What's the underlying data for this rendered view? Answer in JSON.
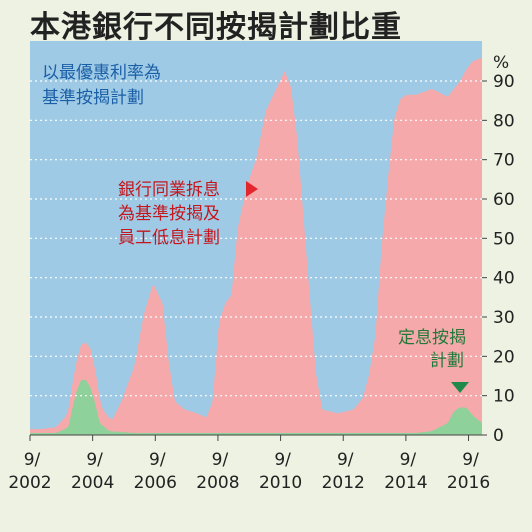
{
  "title": "本港銀行不同按揭計劃比重",
  "chart_data": {
    "type": "area",
    "title": "本港銀行不同按揭計劃比重",
    "ylabel": "%",
    "ylim": [
      0,
      100
    ],
    "yticks": [
      0,
      10,
      20,
      30,
      40,
      50,
      60,
      70,
      80,
      90
    ],
    "xlim": [
      2002.67,
      2017.1
    ],
    "xticks": [
      {
        "x": 2002.67,
        "month": "9/",
        "year": "2002"
      },
      {
        "x": 2004.67,
        "month": "9/",
        "year": "2004"
      },
      {
        "x": 2006.67,
        "month": "9/",
        "year": "2006"
      },
      {
        "x": 2008.67,
        "month": "9/",
        "year": "2008"
      },
      {
        "x": 2010.67,
        "month": "9/",
        "year": "2010"
      },
      {
        "x": 2012.67,
        "month": "9/",
        "year": "2012"
      },
      {
        "x": 2014.67,
        "month": "9/",
        "year": "2014"
      },
      {
        "x": 2016.67,
        "month": "9/",
        "year": "2016"
      }
    ],
    "grid": true,
    "stacking": "stacked-to-100",
    "series": [
      {
        "name": "定息按揭計劃",
        "color": "#8fd19a",
        "x": [
          2002.67,
          2003.5,
          2003.9,
          2004.0,
          2004.15,
          2004.3,
          2004.45,
          2004.6,
          2004.75,
          2004.9,
          2005.2,
          2006.0,
          2007.0,
          2008.5,
          2009.0,
          2010.0,
          2011.5,
          2012.0,
          2013.0,
          2013.5,
          2014.0,
          2015.0,
          2015.5,
          2016.0,
          2016.2,
          2016.4,
          2016.6,
          2016.8,
          2017.1
        ],
        "y": [
          0.5,
          0.5,
          2,
          6,
          11,
          14,
          14,
          12,
          8,
          3,
          1,
          0.5,
          0.5,
          0.5,
          0.5,
          0.5,
          0.5,
          0.5,
          0.5,
          0.5,
          0.5,
          0.5,
          1,
          3,
          6,
          7,
          7,
          5,
          3
        ]
      },
      {
        "name": "銀行同業拆息為基準按揭及員工低息計劃",
        "color": "#f5a9aa",
        "x": [
          2002.67,
          2003.0,
          2003.5,
          2003.8,
          2004.0,
          2004.3,
          2004.6,
          2004.8,
          2005.0,
          2005.3,
          2005.6,
          2006.0,
          2006.3,
          2006.6,
          2006.9,
          2007.1,
          2007.3,
          2007.6,
          2008.0,
          2008.3,
          2008.5,
          2008.7,
          2008.9,
          2009.1,
          2009.3,
          2009.6,
          2009.9,
          2010.2,
          2010.5,
          2010.8,
          2011.0,
          2011.2,
          2011.4,
          2011.6,
          2011.8,
          2012.0,
          2012.5,
          2013.0,
          2013.3,
          2013.5,
          2013.7,
          2013.9,
          2014.1,
          2014.3,
          2014.5,
          2014.7,
          2015.0,
          2015.5,
          2016.0,
          2016.2,
          2016.4,
          2016.6,
          2016.8,
          2017.1
        ],
        "y": [
          1,
          1,
          1.5,
          3,
          6,
          9,
          10,
          8,
          4,
          3,
          8,
          17,
          30,
          38,
          33,
          18,
          8,
          6,
          5,
          4,
          8,
          28,
          33,
          35,
          52,
          63,
          70,
          82,
          87,
          92,
          88,
          75,
          55,
          35,
          15,
          6,
          5,
          6,
          9,
          15,
          25,
          48,
          65,
          80,
          85,
          86,
          86,
          87,
          83,
          82,
          83,
          86,
          90,
          93
        ]
      },
      {
        "name": "以最優惠利率為基準按揭計劃",
        "color": "#9ecae6",
        "note": "remainder to 100%"
      }
    ],
    "annotations": {
      "prime": [
        "以最優惠利率為",
        "基準按揭計劃"
      ],
      "hibor": [
        "銀行同業拆息",
        "為基準按揭及",
        "員工低息計劃"
      ],
      "fixed": [
        "定息按揭",
        "計劃"
      ]
    },
    "colors": {
      "prime_text": "#1b5fa6",
      "hibor_text": "#c4161c",
      "fixed_text": "#1f7a3a",
      "hibor_marker": "#e3262e",
      "fixed_marker": "#1f8a4a"
    }
  }
}
